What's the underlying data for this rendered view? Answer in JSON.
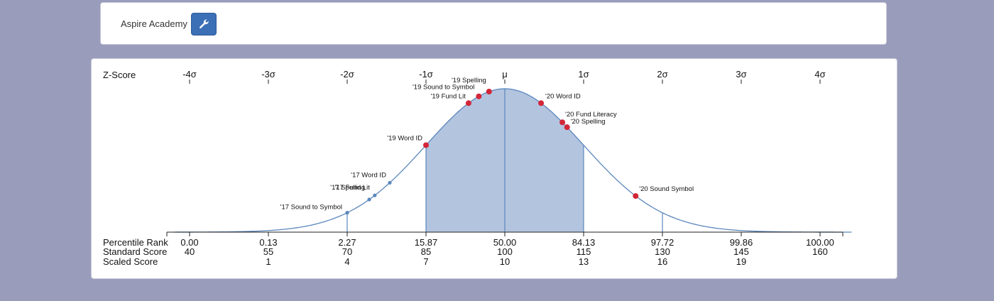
{
  "header": {
    "school_name": "Aspire Academy",
    "tool_icon": "wrench-icon"
  },
  "colors": {
    "page_background": "#999cbb",
    "fill": "#b3c4df",
    "curve": "#5b87bd",
    "point_red": "#d32638",
    "point_blue": "#5b87bd",
    "button": "#3b6fb6"
  },
  "chart_data": {
    "type": "area",
    "title": "",
    "top_axis_label": "Z-Score",
    "z_ticks": [
      "-4σ",
      "-3σ",
      "-2σ",
      "-1σ",
      "μ",
      "1σ",
      "2σ",
      "3σ",
      "4σ"
    ],
    "z_values": [
      -4,
      -3,
      -2,
      -1,
      0,
      1,
      2,
      3,
      4
    ],
    "xlim": [
      -4.2,
      4.4
    ],
    "shaded_range_z": [
      -1,
      1
    ],
    "vertical_lines_z": [
      -2,
      -1,
      0,
      1,
      2
    ],
    "bottom_rows": [
      {
        "label": "Percentile Rank",
        "values": [
          "0.00",
          "0.13",
          "2.27",
          "15.87",
          "50.00",
          "84.13",
          "97.72",
          "99.86",
          "100.00"
        ]
      },
      {
        "label": "Standard Score",
        "values": [
          "40",
          "55",
          "70",
          "85",
          "100",
          "115",
          "130",
          "145",
          "160"
        ]
      },
      {
        "label": "Scaled Score",
        "values": [
          "",
          "1",
          "4",
          "7",
          "10",
          "13",
          "16",
          "19",
          ""
        ]
      }
    ],
    "points": [
      {
        "label": "'17 Sound to Symbol",
        "z": -2.0,
        "color": "blue"
      },
      {
        "label": "'17 Fund Lit",
        "z": -1.65,
        "color": "blue"
      },
      {
        "label": "'17 Spelling",
        "z": -1.72,
        "color": "blue"
      },
      {
        "label": "'17 Word ID",
        "z": -1.46,
        "color": "blue"
      },
      {
        "label": "'19 Word ID",
        "z": -1.0,
        "color": "red"
      },
      {
        "label": "'19 Fund Lit",
        "z": -0.46,
        "color": "red"
      },
      {
        "label": "'19 Sound to Symbol",
        "z": -0.33,
        "color": "red"
      },
      {
        "label": "'19 Spelling",
        "z": -0.2,
        "color": "red"
      },
      {
        "label": "'20 Word ID",
        "z": 0.46,
        "color": "red"
      },
      {
        "label": "'20 Fund Literacy",
        "z": 0.73,
        "color": "red"
      },
      {
        "label": "'20 Spelling",
        "z": 0.79,
        "color": "red"
      },
      {
        "label": "'20 Sound Symbol",
        "z": 1.66,
        "color": "red"
      }
    ]
  }
}
